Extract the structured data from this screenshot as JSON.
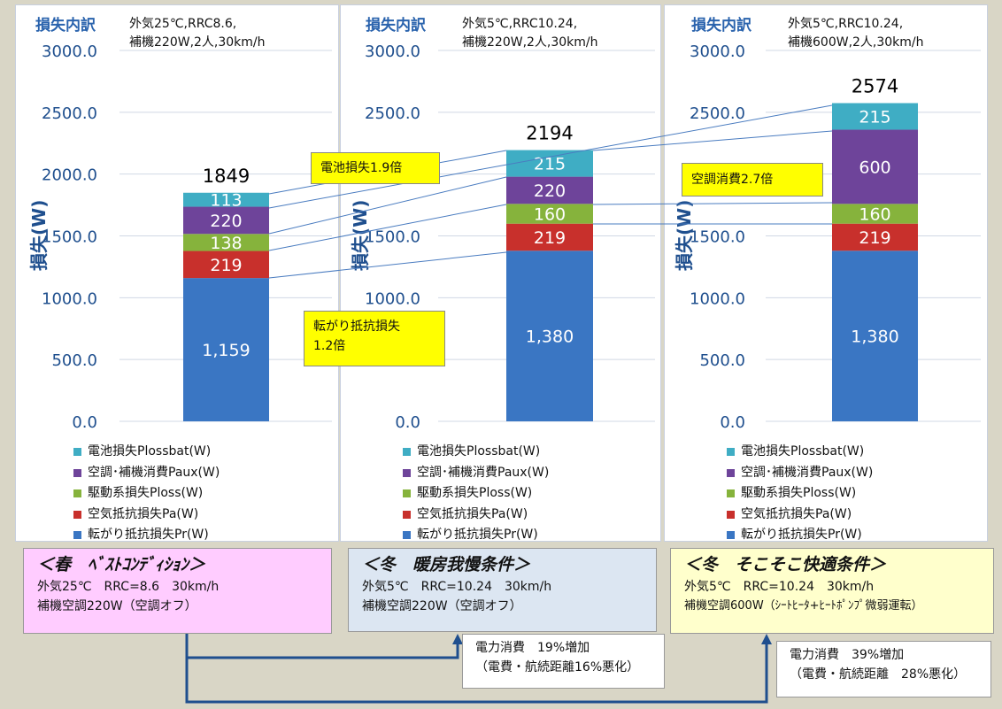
{
  "chart_data": [
    {
      "type": "bar",
      "title": "損失内訳",
      "subtitle_lines": [
        "外気25℃,RRC8.6,",
        "補機220W,2人,30km/h"
      ],
      "ylabel": "損失(W)",
      "ylim": [
        0,
        3000
      ],
      "yticks": [
        "3000.0",
        "2500.0",
        "2000.0",
        "1500.0",
        "1000.0",
        "500.0",
        "0.0"
      ],
      "grid": true,
      "legend_position": "bottom",
      "total_label": "1849",
      "series": [
        {
          "name": "転がり抵抗損失Pr(W)",
          "value": 1159,
          "label": "1,159"
        },
        {
          "name": "空気抵抗損失Pa(W)",
          "value": 219,
          "label": "219"
        },
        {
          "name": "駆動系損失Ploss(W)",
          "value": 138,
          "label": "138"
        },
        {
          "name": "空調・補機消費Paux(W)",
          "value": 220,
          "label": "220"
        },
        {
          "name": "電池損失Plossbat(W)",
          "value": 113,
          "label": "113"
        }
      ]
    },
    {
      "type": "bar",
      "title": "損失内訳",
      "subtitle_lines": [
        "外気5℃,RRC10.24,",
        "補機220W,2人,30km/h"
      ],
      "ylabel": "損失(W)",
      "ylim": [
        0,
        3000
      ],
      "yticks": [
        "3000.0",
        "2500.0",
        "2000.0",
        "1500.0",
        "1000.0",
        "500.0",
        "0.0"
      ],
      "grid": true,
      "legend_position": "bottom",
      "total_label": "2194",
      "series": [
        {
          "name": "転がり抵抗損失Pr(W)",
          "value": 1380,
          "label": "1,380"
        },
        {
          "name": "空気抵抗損失Pa(W)",
          "value": 219,
          "label": "219"
        },
        {
          "name": "駆動系損失Ploss(W)",
          "value": 160,
          "label": "160"
        },
        {
          "name": "空調・補機消費Paux(W)",
          "value": 220,
          "label": "220"
        },
        {
          "name": "電池損失Plossbat(W)",
          "value": 215,
          "label": "215"
        }
      ]
    },
    {
      "type": "bar",
      "title": "損失内訳",
      "subtitle_lines": [
        "外気5℃,RRC10.24,",
        "補機600W,2人,30km/h"
      ],
      "ylabel": "損失(W)",
      "ylim": [
        0,
        3000
      ],
      "yticks": [
        "3000.0",
        "2500.0",
        "2000.0",
        "1500.0",
        "1000.0",
        "500.0",
        "0.0"
      ],
      "grid": true,
      "legend_position": "bottom",
      "total_label": "2574",
      "series": [
        {
          "name": "転がり抵抗損失Pr(W)",
          "value": 1380,
          "label": "1,380"
        },
        {
          "name": "空気抵抗損失Pa(W)",
          "value": 219,
          "label": "219"
        },
        {
          "name": "駆動系損失Ploss(W)",
          "value": 160,
          "label": "160"
        },
        {
          "name": "空調・補機消費Paux(W)",
          "value": 600,
          "label": "600"
        },
        {
          "name": "電池損失Plossbat(W)",
          "value": 215,
          "label": "215"
        }
      ]
    }
  ],
  "legend_order": [
    "電池損失Plossbat(W)",
    "空調･補機消費Paux(W)",
    "駆動系損失Ploss(W)",
    "空気抵抗損失Pa(W)",
    "転がり抵抗損失Pr(W)"
  ],
  "colors": {
    "転がり抵抗損失Pr(W)": "#3a76c3",
    "空気抵抗損失Pa(W)": "#c8302c",
    "駆動系損失Ploss(W)": "#86b33c",
    "空調・補機消費Paux(W)": "#6e449a",
    "電池損失Plossbat(W)": "#3fadc4"
  },
  "callouts": {
    "battery": "電池損失1.9倍",
    "aircon": "空調消費2.7倍",
    "rolling_line1": "転がり抵抗損失",
    "rolling_line2": "1.2倍"
  },
  "conditions": [
    {
      "title": "＜春　ﾍﾞｽﾄｺﾝﾃﾞｨｼｮﾝ＞",
      "line1": "外気25℃　RRC=8.6　30km/h",
      "line2": "補機空調220W（空調オフ）",
      "bg": "#ffccff"
    },
    {
      "title": "＜冬　暖房我慢条件＞",
      "line1": "外気5℃　RRC=10.24　30km/h",
      "line2": "補機空調220W（空調オフ）",
      "bg": "#dce6f2"
    },
    {
      "title": "＜冬　そこそこ快適条件＞",
      "line1": "外気5℃　RRC=10.24　30km/h",
      "line2": "補機空調600W（ｼｰﾄﾋｰﾀ+ﾋｰﾄﾎﾟﾝﾌﾟ微弱運転）",
      "bg": "#ffffcc"
    }
  ],
  "notes": [
    {
      "line1": "電力消費　19%増加",
      "line2": "（電費・航続距離16%悪化）"
    },
    {
      "line1": "電力消費　39%増加",
      "line2": "（電費・航続距離　28%悪化）"
    }
  ]
}
